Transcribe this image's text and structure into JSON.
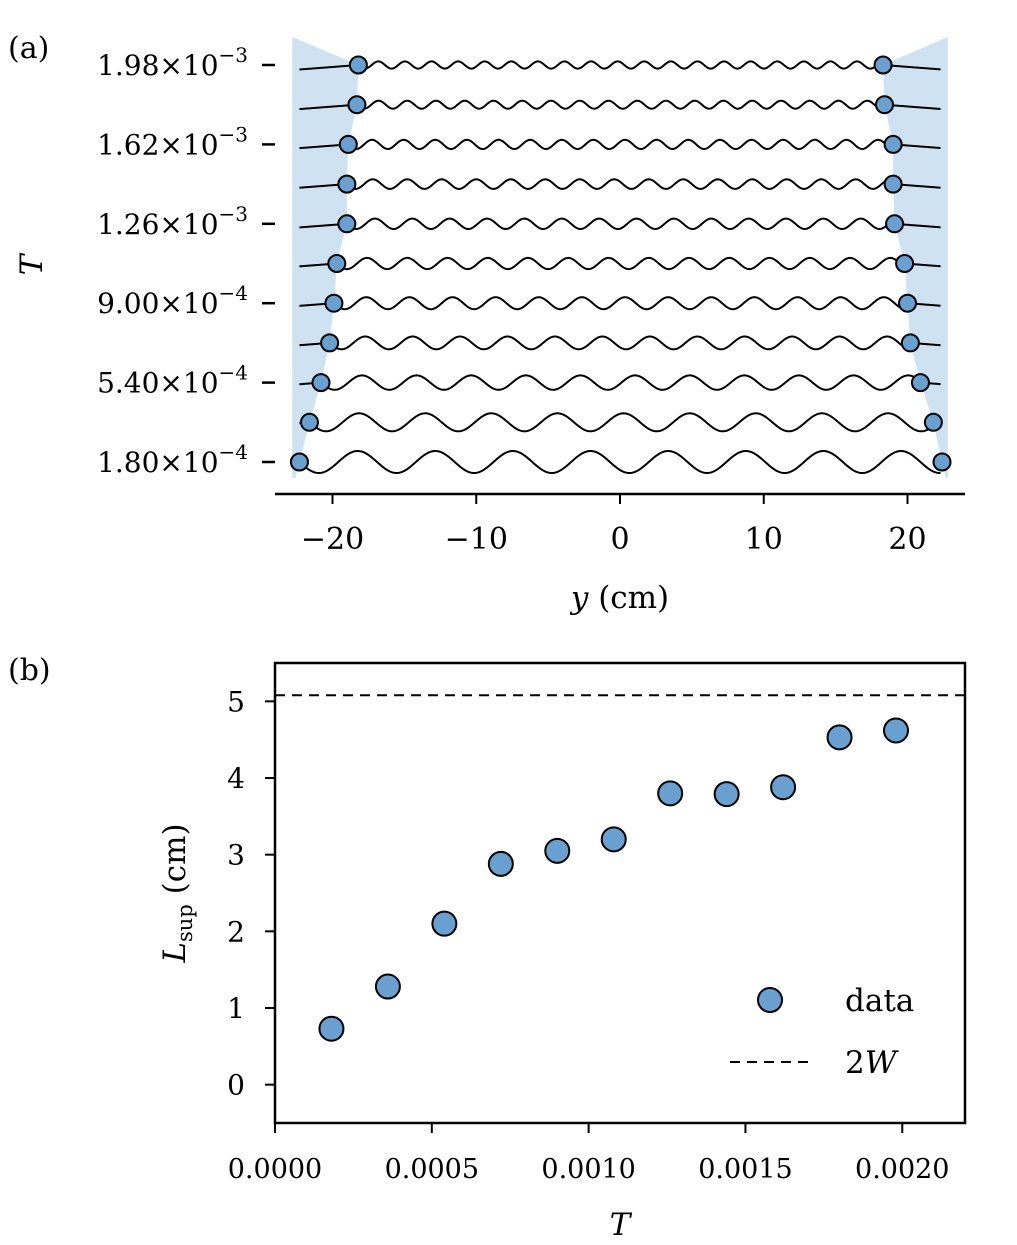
{
  "chart_data": [
    {
      "panel": "(a)",
      "type": "line",
      "xlabel_var": "y",
      "xlabel_unit": " (cm)",
      "ylabel": "T",
      "xlim": [
        -24,
        24
      ],
      "x_ticks": [
        -20,
        -10,
        0,
        10,
        20
      ],
      "x_tick_labels": [
        "−20",
        "−10",
        "0",
        "10",
        "20"
      ],
      "y_ticks": [
        {
          "row": 10,
          "mantissa": "1.98",
          "exponent": "−3"
        },
        {
          "row": 8,
          "mantissa": "1.62",
          "exponent": "−3"
        },
        {
          "row": 6,
          "mantissa": "1.26",
          "exponent": "−3"
        },
        {
          "row": 4,
          "mantissa": "9.00",
          "exponent": "−4"
        },
        {
          "row": 2,
          "mantissa": "5.40",
          "exponent": "−4"
        },
        {
          "row": 0,
          "mantissa": "1.80",
          "exponent": "−4"
        }
      ],
      "shaded_region_color": "#cfe2f1",
      "marker_color": "#6aa0cf",
      "rows": [
        {
          "T": 0.00018,
          "left_edge": -22.3,
          "right_edge": 22.4,
          "wavelength": 5.4,
          "amplitude": 0.55
        },
        {
          "T": 0.00036,
          "left_edge": -21.6,
          "right_edge": 21.8,
          "wavelength": 4.6,
          "amplitude": 0.45
        },
        {
          "T": 0.00054,
          "left_edge": -20.8,
          "right_edge": 20.9,
          "wavelength": 3.8,
          "amplitude": 0.36
        },
        {
          "T": 0.00072,
          "left_edge": -20.2,
          "right_edge": 20.2,
          "wavelength": 3.3,
          "amplitude": 0.32
        },
        {
          "T": 0.0009,
          "left_edge": -19.9,
          "right_edge": 20.0,
          "wavelength": 3.0,
          "amplitude": 0.3
        },
        {
          "T": 0.00108,
          "left_edge": -19.7,
          "right_edge": 19.8,
          "wavelength": 2.8,
          "amplitude": 0.28
        },
        {
          "T": 0.00126,
          "left_edge": -19.0,
          "right_edge": 19.1,
          "wavelength": 2.6,
          "amplitude": 0.26
        },
        {
          "T": 0.00144,
          "left_edge": -19.0,
          "right_edge": 19.0,
          "wavelength": 2.4,
          "amplitude": 0.24
        },
        {
          "T": 0.00162,
          "left_edge": -18.9,
          "right_edge": 19.0,
          "wavelength": 2.2,
          "amplitude": 0.23
        },
        {
          "T": 0.0018,
          "left_edge": -18.3,
          "right_edge": 18.4,
          "wavelength": 2.0,
          "amplitude": 0.2
        },
        {
          "T": 0.00198,
          "left_edge": -18.2,
          "right_edge": 18.3,
          "wavelength": 1.85,
          "amplitude": 0.18
        }
      ]
    },
    {
      "panel": "(b)",
      "type": "scatter",
      "xlabel": "T",
      "ylabel_main": "L",
      "ylabel_sub": "sup",
      "ylabel_unit": " (cm)",
      "xlim": [
        0,
        0.0022
      ],
      "ylim": [
        -0.5,
        5.5
      ],
      "x_ticks": [
        0,
        0.0005,
        0.001,
        0.0015,
        0.002
      ],
      "x_tick_labels": [
        "0.0000",
        "0.0005",
        "0.0010",
        "0.0015",
        "0.0020"
      ],
      "y_ticks": [
        0,
        1,
        2,
        3,
        4,
        5
      ],
      "y_tick_labels": [
        "0",
        "1",
        "2",
        "3",
        "4",
        "5"
      ],
      "series": [
        {
          "name": "data",
          "color": "#6aa0cf",
          "x": [
            0.00018,
            0.00036,
            0.00054,
            0.00072,
            0.0009,
            0.00108,
            0.00126,
            0.00144,
            0.00162,
            0.0018,
            0.00198
          ],
          "y": [
            0.73,
            1.28,
            2.1,
            2.88,
            3.05,
            3.2,
            3.8,
            3.79,
            3.88,
            4.53,
            4.62
          ]
        }
      ],
      "reference_line": {
        "name": "2W",
        "y": 5.08,
        "style": "dashed"
      },
      "legend": {
        "position": "bottom-right",
        "entries": [
          {
            "label": "data",
            "kind": "marker"
          },
          {
            "label_main": "2",
            "label_var": "W",
            "kind": "dashed"
          }
        ]
      }
    }
  ]
}
